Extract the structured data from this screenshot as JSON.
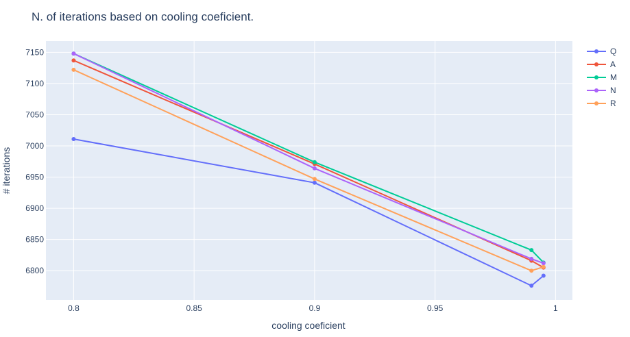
{
  "chart_data": {
    "type": "line",
    "title": "N. of iterations based on cooling coeficient.",
    "xlabel": "cooling coeficient",
    "ylabel": "# iterations",
    "x": [
      0.8,
      0.9,
      0.99,
      0.995
    ],
    "xlim": [
      0.7885,
      1.007
    ],
    "ylim": [
      6753,
      7168
    ],
    "xticks": [
      0.8,
      0.85,
      0.9,
      0.95,
      1
    ],
    "xtick_labels": [
      "0.8",
      "0.85",
      "0.9",
      "0.95",
      "1"
    ],
    "yticks": [
      6800,
      6850,
      6900,
      6950,
      7000,
      7050,
      7100,
      7150
    ],
    "ytick_labels": [
      "6800",
      "6850",
      "6900",
      "6950",
      "7000",
      "7050",
      "7100",
      "7150"
    ],
    "grid": true,
    "legend_position": "top-right",
    "series": [
      {
        "name": "Q",
        "color": "#636efa",
        "values": [
          7011,
          6941,
          6776,
          6792
        ]
      },
      {
        "name": "A",
        "color": "#ef553b",
        "values": [
          7137,
          6971,
          6816,
          6805
        ]
      },
      {
        "name": "M",
        "color": "#00cc96",
        "values": [
          7148,
          6974,
          6833,
          6813
        ]
      },
      {
        "name": "N",
        "color": "#ab63fa",
        "values": [
          7148,
          6964,
          6819,
          6812
        ]
      },
      {
        "name": "R",
        "color": "#ffa15a",
        "values": [
          7122,
          6947,
          6800,
          6806
        ]
      }
    ]
  }
}
